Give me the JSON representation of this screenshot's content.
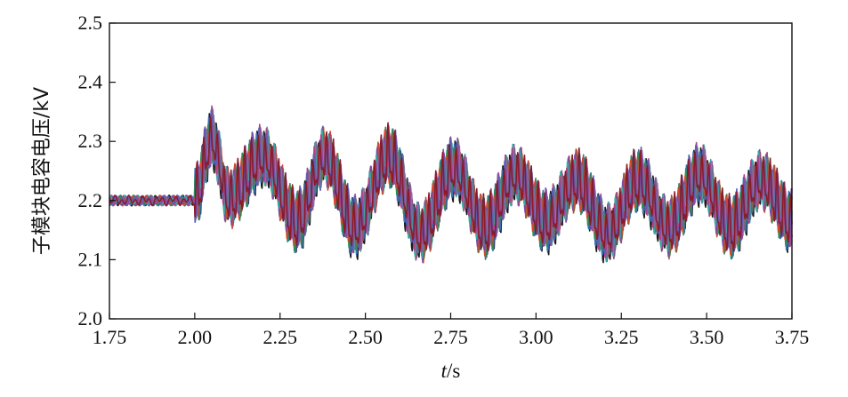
{
  "chart_data": {
    "type": "line",
    "xlabel_var": "t",
    "xlabel_unit": "/s",
    "ylabel": "子模块电容电压/kV",
    "xlim": [
      1.75,
      3.75
    ],
    "ylim": [
      2.0,
      2.5
    ],
    "x_ticks": [
      "1.75",
      "2.00",
      "2.25",
      "2.50",
      "2.75",
      "3.00",
      "3.25",
      "3.50",
      "3.75"
    ],
    "y_ticks": [
      "2.0",
      "2.1",
      "2.2",
      "2.3",
      "2.4",
      "2.5"
    ],
    "grid": false,
    "series_colors": [
      "#1b1b1b",
      "#3a6fb0",
      "#2e8b57",
      "#d04a2f",
      "#7b4fa0",
      "#3aa7a0",
      "#b0428a",
      "#5b5fb5",
      "#8b1a2b"
    ],
    "steady_value_before_step": 2.2,
    "step_time": 2.0,
    "oscillation_center_after_step": [
      {
        "x": 2.0,
        "y": 2.2
      },
      {
        "x": 2.05,
        "y": 2.3
      },
      {
        "x": 2.1,
        "y": 2.2
      },
      {
        "x": 2.2,
        "y": 2.27
      },
      {
        "x": 2.3,
        "y": 2.16
      },
      {
        "x": 2.38,
        "y": 2.27
      },
      {
        "x": 2.47,
        "y": 2.15
      },
      {
        "x": 2.57,
        "y": 2.27
      },
      {
        "x": 2.66,
        "y": 2.14
      },
      {
        "x": 2.76,
        "y": 2.25
      },
      {
        "x": 2.85,
        "y": 2.15
      },
      {
        "x": 2.94,
        "y": 2.24
      },
      {
        "x": 3.03,
        "y": 2.16
      },
      {
        "x": 3.12,
        "y": 2.23
      },
      {
        "x": 3.21,
        "y": 2.14
      },
      {
        "x": 3.3,
        "y": 2.23
      },
      {
        "x": 3.39,
        "y": 2.15
      },
      {
        "x": 3.48,
        "y": 2.24
      },
      {
        "x": 3.57,
        "y": 2.15
      },
      {
        "x": 3.66,
        "y": 2.23
      },
      {
        "x": 3.75,
        "y": 2.16
      }
    ],
    "fast_ripple_amplitude_kV": 0.06,
    "max_value": 2.375,
    "min_value": 2.085
  }
}
